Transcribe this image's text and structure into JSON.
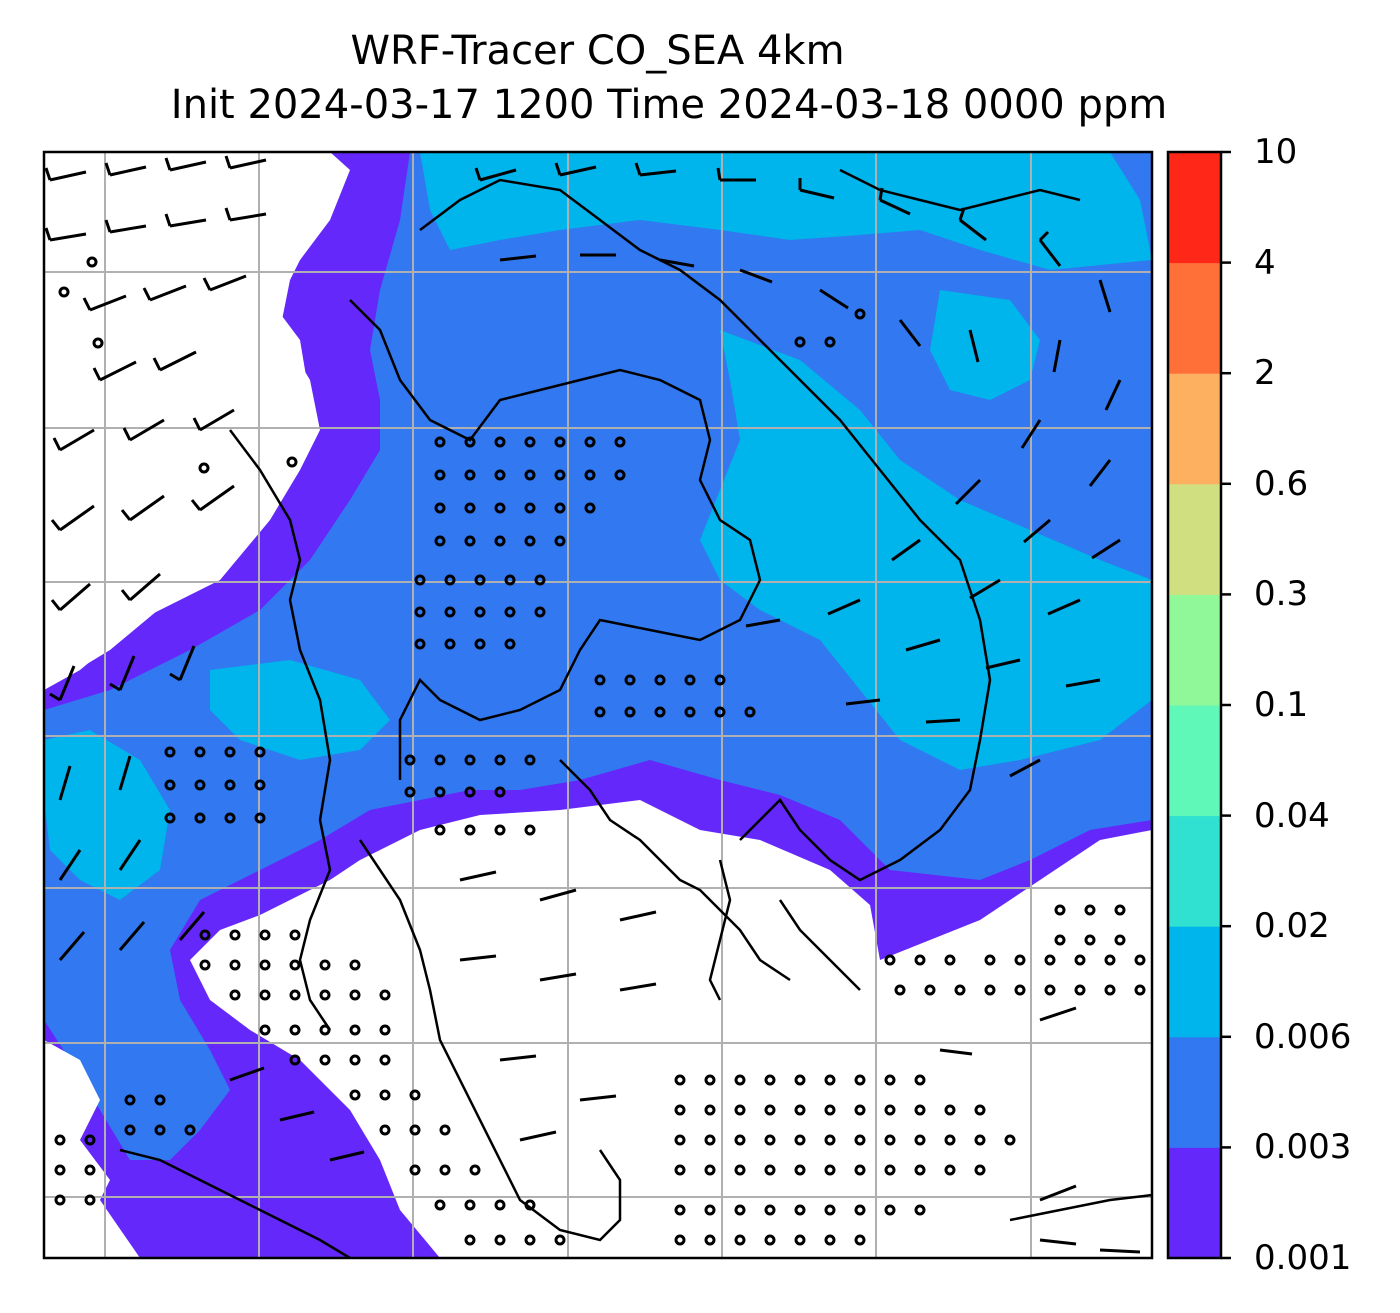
{
  "title": {
    "line1": "WRF-Tracer CO_SEA 4km",
    "line2": "Init 2024-03-17 1200 Time 2024-03-18 0000 ppm"
  },
  "colorbar": {
    "levels": [
      "0.001",
      "0.003",
      "0.006",
      "0.02",
      "0.04",
      "0.1",
      "0.3",
      "0.6",
      "2",
      "4",
      "10"
    ],
    "colors": [
      "#6428fa",
      "#3278f0",
      "#00b4ec",
      "#30e0d0",
      "#60f8b8",
      "#90f898",
      "#d0e080",
      "#fcb060",
      "#ff7038",
      "#ff2818"
    ]
  },
  "map": {
    "background": "#ffffff",
    "gridlines": true,
    "wind_barbs": true,
    "coastlines": true
  }
}
